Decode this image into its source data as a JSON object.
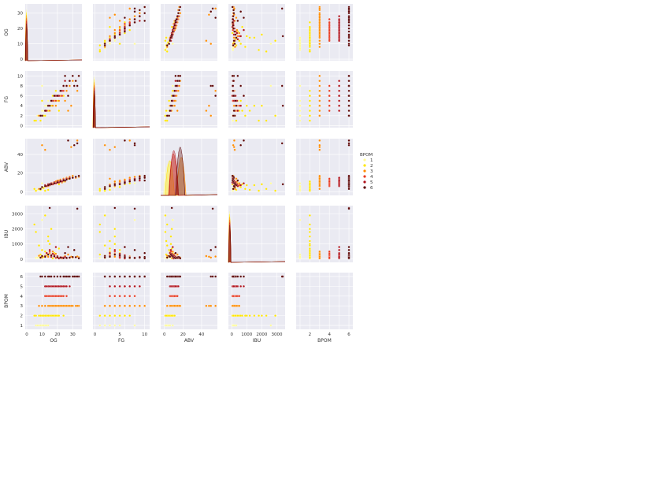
{
  "chart_data": {
    "type": "scatter",
    "kind": "pairplot",
    "variables": [
      "OG",
      "FG",
      "ABV",
      "IBU",
      "BPOM"
    ],
    "axis_labels": {
      "OG": "OG",
      "FG": "FG",
      "ABV": "ABV",
      "IBU": "IBU",
      "BPOM": "BPOM"
    },
    "ranges": {
      "OG": [
        -1,
        36
      ],
      "FG": [
        -0.4,
        11
      ],
      "ABV": [
        -4,
        57
      ],
      "IBU": [
        -220,
        3550
      ],
      "BPOM": [
        0.6,
        6.4
      ]
    },
    "ticks": {
      "OG": [
        0,
        10,
        20,
        30
      ],
      "FG": [
        0,
        2,
        4,
        6,
        8,
        10
      ],
      "ABV": [
        0,
        20,
        40
      ],
      "IBU": [
        0,
        1000,
        2000,
        3000
      ],
      "BPOM": [
        1,
        2,
        3,
        4,
        5,
        6
      ]
    },
    "bottom_ticks": {
      "OG": [
        0,
        10,
        20,
        30
      ],
      "FG": [
        0,
        5,
        10
      ],
      "ABV": [
        0,
        20,
        40
      ],
      "IBU": [
        0,
        1000,
        2000,
        3000
      ],
      "BPOM": [
        2,
        4,
        6
      ]
    },
    "hue": "BPOM",
    "legend": {
      "title": "BPOM",
      "placement": "right",
      "labels": [
        "1",
        "2",
        "3",
        "4",
        "5",
        "6"
      ]
    },
    "palette": [
      "#fffb9a",
      "#ffe600",
      "#ff8c00",
      "#e83a20",
      "#b0101a",
      "#5a0000"
    ],
    "background": "#eaeaf2",
    "grid": true,
    "series": [
      {
        "bpom": 1,
        "points": [
          [
            8,
            2,
            2,
            100,
            1
          ],
          [
            10,
            3,
            3,
            150,
            1
          ],
          [
            6,
            1,
            1,
            80,
            1
          ],
          [
            12,
            4,
            5,
            200,
            1
          ],
          [
            9,
            2,
            3,
            60,
            1
          ],
          [
            11,
            3,
            4,
            120,
            1
          ],
          [
            7,
            2,
            2,
            90,
            1
          ],
          [
            10,
            8,
            9,
            2600,
            1
          ],
          [
            14,
            5,
            6,
            150,
            1
          ],
          [
            13,
            4,
            6,
            300,
            1
          ]
        ]
      },
      {
        "bpom": 2,
        "points": [
          [
            10,
            2,
            5,
            200,
            2
          ],
          [
            12,
            3,
            6,
            500,
            2
          ],
          [
            8,
            2,
            3,
            900,
            2
          ],
          [
            14,
            4,
            7,
            1500,
            2
          ],
          [
            16,
            4,
            8,
            2000,
            2
          ],
          [
            9,
            1,
            2,
            300,
            2
          ],
          [
            11,
            2,
            4,
            150,
            2
          ],
          [
            13,
            3,
            6,
            250,
            2
          ],
          [
            15,
            4,
            7,
            1000,
            2
          ],
          [
            18,
            5,
            9,
            400,
            2
          ],
          [
            20,
            5,
            10,
            100,
            2
          ],
          [
            6,
            1,
            1,
            1800,
            2
          ],
          [
            17,
            6,
            8,
            50,
            2
          ],
          [
            19,
            7,
            9,
            80,
            2
          ],
          [
            21,
            3,
            8,
            700,
            2
          ],
          [
            5,
            1,
            3,
            2300,
            2
          ],
          [
            24,
            6,
            11,
            120,
            2
          ],
          [
            12,
            2,
            1,
            2900,
            2
          ],
          [
            10,
            5,
            5,
            600,
            2
          ],
          [
            14,
            3,
            2,
            1200,
            2
          ]
        ]
      },
      {
        "bpom": 3,
        "points": [
          [
            10,
            2,
            50,
            100,
            3
          ],
          [
            12,
            3,
            45,
            200,
            3
          ],
          [
            14,
            4,
            6,
            150,
            3
          ],
          [
            16,
            5,
            8,
            250,
            3
          ],
          [
            18,
            5,
            10,
            300,
            3
          ],
          [
            20,
            6,
            12,
            180,
            3
          ],
          [
            22,
            6,
            13,
            120,
            3
          ],
          [
            24,
            7,
            14,
            90,
            3
          ],
          [
            26,
            7,
            15,
            60,
            3
          ],
          [
            28,
            8,
            16,
            80,
            3
          ],
          [
            30,
            9,
            17,
            100,
            3
          ],
          [
            32,
            9,
            15,
            140,
            3
          ],
          [
            34,
            10,
            16,
            120,
            3
          ],
          [
            15,
            3,
            7,
            400,
            3
          ],
          [
            17,
            4,
            9,
            500,
            3
          ],
          [
            19,
            4,
            11,
            350,
            3
          ],
          [
            21,
            5,
            12,
            80,
            3
          ],
          [
            23,
            6,
            10,
            50,
            3
          ],
          [
            25,
            5,
            11,
            200,
            3
          ],
          [
            33,
            7,
            55,
            170,
            3
          ],
          [
            8,
            2,
            3,
            220,
            3
          ],
          [
            27,
            3,
            14,
            300,
            3
          ],
          [
            29,
            4,
            48,
            160,
            3
          ]
        ]
      },
      {
        "bpom": 4,
        "points": [
          [
            12,
            3,
            7,
            200,
            4
          ],
          [
            14,
            4,
            8,
            300,
            4
          ],
          [
            16,
            5,
            9,
            150,
            4
          ],
          [
            18,
            6,
            10,
            250,
            4
          ],
          [
            20,
            6,
            11,
            180,
            4
          ],
          [
            22,
            7,
            12,
            120,
            4
          ],
          [
            24,
            7,
            13,
            90,
            4
          ],
          [
            26,
            8,
            14,
            60,
            4
          ],
          [
            13,
            3,
            6,
            400,
            4
          ],
          [
            15,
            4,
            7,
            500,
            4
          ],
          [
            17,
            5,
            8,
            350,
            4
          ],
          [
            19,
            5,
            9,
            80,
            4
          ],
          [
            21,
            6,
            10,
            50,
            4
          ],
          [
            23,
            6,
            11,
            100,
            4
          ]
        ]
      },
      {
        "bpom": 5,
        "points": [
          [
            12,
            3,
            7,
            200,
            5
          ],
          [
            14,
            4,
            8,
            300,
            5
          ],
          [
            16,
            5,
            9,
            150,
            5
          ],
          [
            18,
            6,
            10,
            250,
            5
          ],
          [
            20,
            6,
            11,
            180,
            5
          ],
          [
            22,
            7,
            12,
            120,
            5
          ],
          [
            24,
            8,
            13,
            90,
            5
          ],
          [
            26,
            8,
            14,
            60,
            5
          ],
          [
            28,
            9,
            15,
            80,
            5
          ],
          [
            13,
            3,
            6,
            400,
            5
          ],
          [
            15,
            4,
            7,
            600,
            5
          ],
          [
            17,
            5,
            8,
            350,
            5
          ],
          [
            19,
            6,
            9,
            800,
            5
          ],
          [
            21,
            6,
            10,
            50,
            5
          ],
          [
            23,
            7,
            11,
            100,
            5
          ],
          [
            25,
            9,
            12,
            140,
            5
          ]
        ]
      },
      {
        "bpom": 6,
        "points": [
          [
            10,
            2,
            5,
            200,
            6
          ],
          [
            12,
            3,
            6,
            150,
            6
          ],
          [
            14,
            4,
            7,
            300,
            6
          ],
          [
            16,
            5,
            8,
            250,
            6
          ],
          [
            18,
            6,
            9,
            180,
            6
          ],
          [
            20,
            6,
            10,
            120,
            6
          ],
          [
            22,
            7,
            11,
            90,
            6
          ],
          [
            24,
            8,
            12,
            60,
            6
          ],
          [
            26,
            8,
            13,
            80,
            6
          ],
          [
            28,
            9,
            14,
            100,
            6
          ],
          [
            30,
            10,
            15,
            140,
            6
          ],
          [
            32,
            9,
            16,
            120,
            6
          ],
          [
            34,
            10,
            17,
            50,
            6
          ],
          [
            15,
            4,
            8,
            3400,
            6
          ],
          [
            27,
            6,
            55,
            800,
            6
          ],
          [
            31,
            8,
            50,
            600,
            6
          ],
          [
            9,
            2,
            3,
            100,
            6
          ],
          [
            25,
            10,
            12,
            400,
            6
          ],
          [
            33,
            8,
            52,
            3350,
            6
          ]
        ]
      }
    ]
  }
}
